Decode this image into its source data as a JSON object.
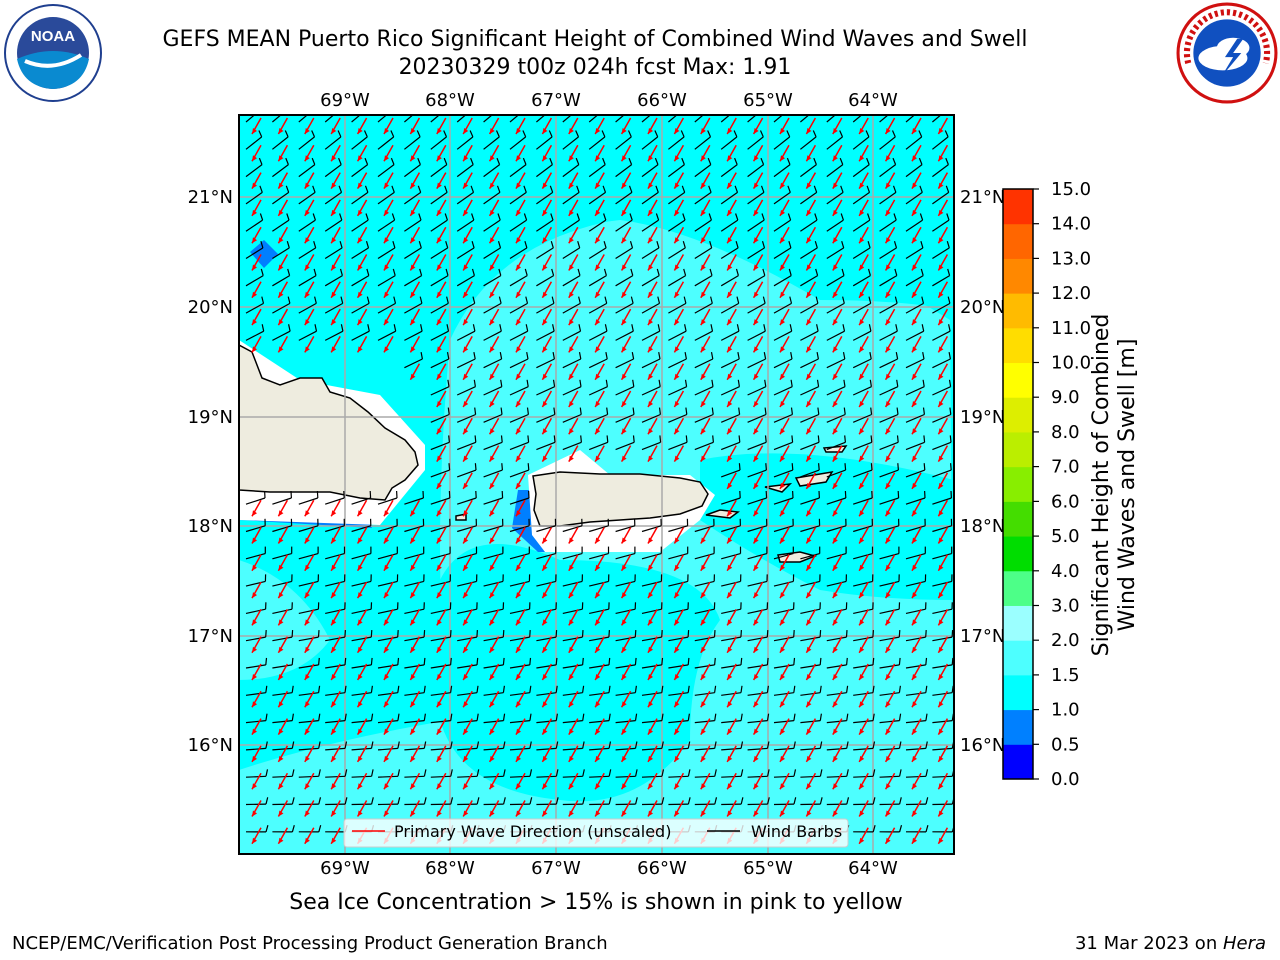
{
  "header": {
    "title_line1": "GEFS MEAN Puerto Rico Significant Height of Combined Wind Waves and Swell",
    "title_line2": "20230329 t00z 024h fcst   Max: 1.91"
  },
  "map": {
    "lon_labels": [
      "69°W",
      "68°W",
      "67°W",
      "66°W",
      "65°W",
      "64°W"
    ],
    "lat_labels": [
      "21°N",
      "20°N",
      "19°N",
      "18°N",
      "17°N",
      "16°N"
    ],
    "legend": {
      "wave_direction": "Primary Wave Direction (unscaled)",
      "wind_barbs": "Wind Barbs"
    },
    "colors": {
      "sea_cyan": "#00ffff",
      "sea_light": "#4dffff",
      "sea_blue": "#007fff",
      "land": "#eeecdf",
      "arrow": "#ff0000"
    }
  },
  "colorbar": {
    "label_line1": "Significant Height of Combined",
    "label_line2": "Wind Waves and Swell [m]",
    "ticks": [
      "15.0",
      "14.0",
      "13.0",
      "12.0",
      "11.0",
      "10.0",
      "9.0",
      "8.0",
      "7.0",
      "6.0",
      "5.0",
      "4.0",
      "3.0",
      "2.0",
      "1.5",
      "1.0",
      "0.5",
      "0.0"
    ],
    "colors": [
      "#0000ff",
      "#0080ff",
      "#00ffff",
      "#4dffff",
      "#9bffff",
      "#4dff88",
      "#00dd00",
      "#44dd00",
      "#88ee00",
      "#bbee00",
      "#ddee00",
      "#ffff00",
      "#ffdd00",
      "#ffbb00",
      "#ff8800",
      "#ff6600",
      "#ff3300"
    ]
  },
  "footer": {
    "note": "Sea Ice Concentration > 15% is shown in pink to yellow",
    "credit_left": "NCEP/EMC/Verification Post Processing Product Generation Branch",
    "date_text": "31 Mar 2023 on ",
    "machine": "Hera"
  },
  "logos": {
    "noaa_text": "NOAA",
    "nws_ring_text": "NATIONAL WEATHER SERVICE"
  }
}
